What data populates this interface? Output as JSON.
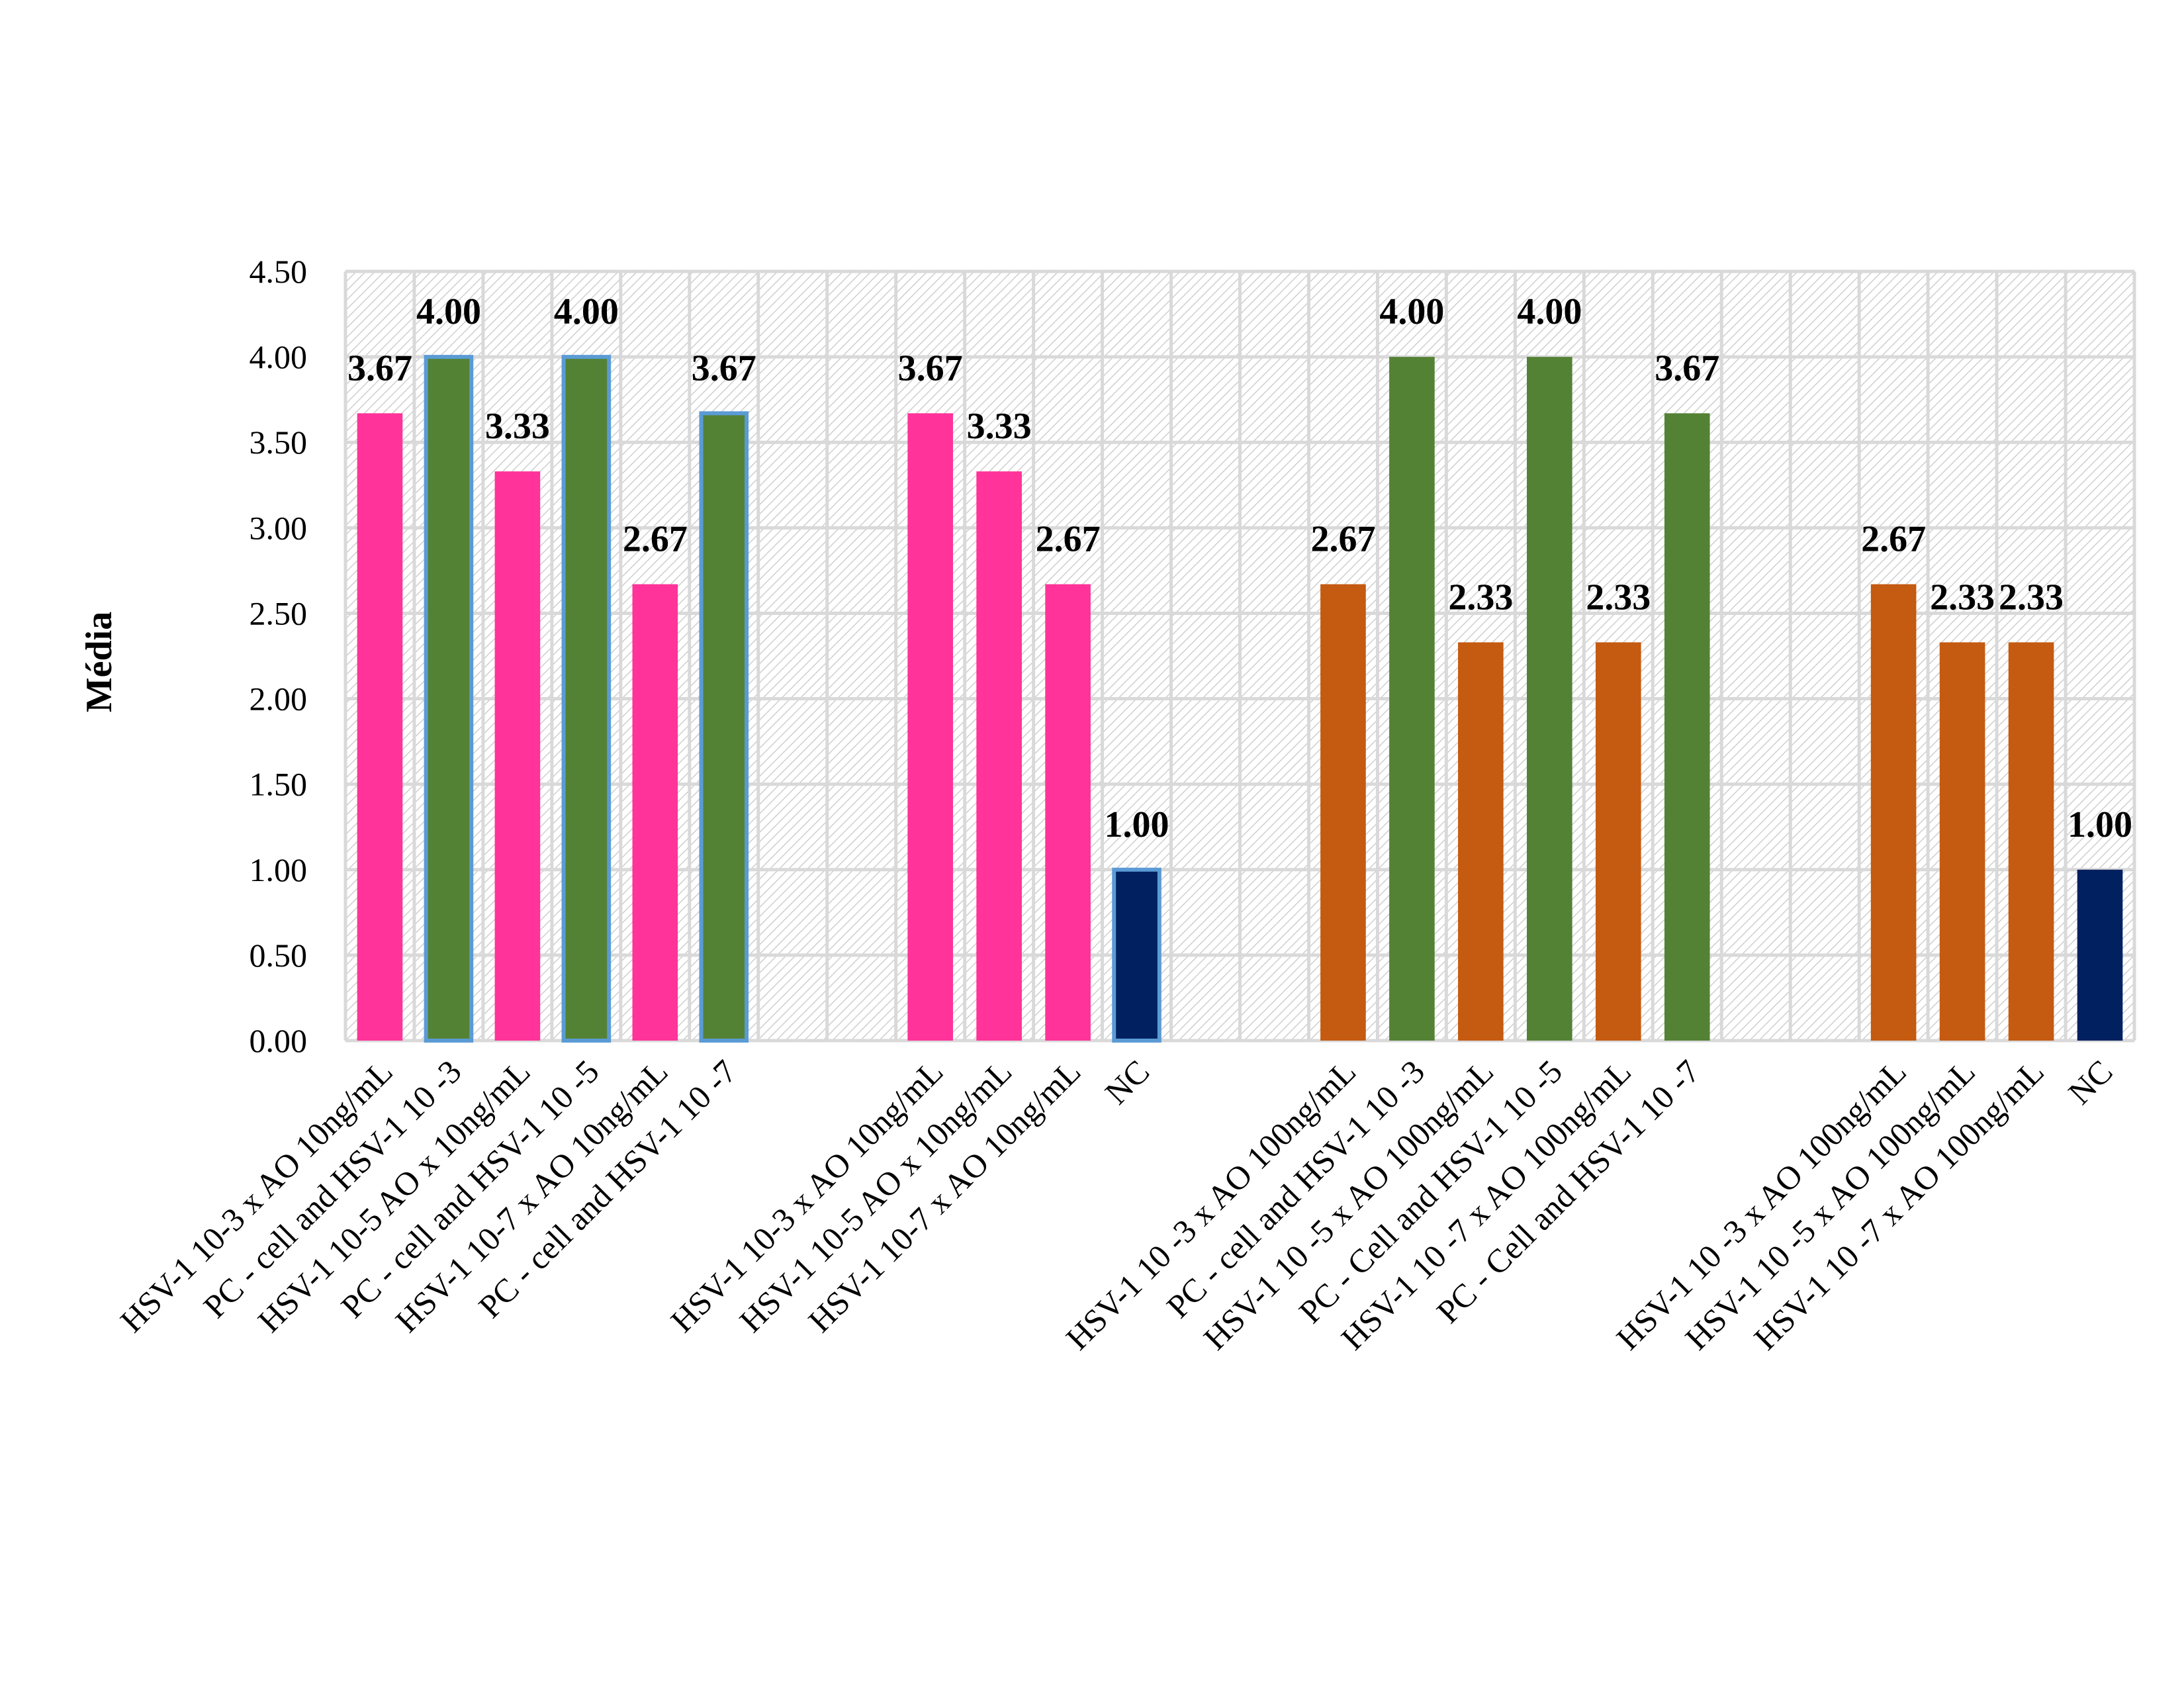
{
  "chart_data": {
    "type": "bar",
    "ylabel": "Média",
    "ylim": [
      0,
      4.5
    ],
    "ytick_step": 0.5,
    "yticks": [
      "0.00",
      "0.50",
      "1.00",
      "1.50",
      "2.00",
      "2.50",
      "3.00",
      "3.50",
      "4.00",
      "4.50"
    ],
    "grid": true,
    "colors": {
      "pink": "#ff3399",
      "green": "#548235",
      "orange": "#c55a11",
      "navy": "#002060",
      "outline": "#5b9bd5",
      "grid": "#d9d9d9"
    },
    "bars": [
      {
        "label": "HSV-1 10-3 x AO 10ng/mL",
        "value": 3.67,
        "value_label": "3.67",
        "color": "pink",
        "outline": false
      },
      {
        "label": "PC - cell and HSV-1 10 -3",
        "value": 4.0,
        "value_label": "4.00",
        "color": "green",
        "outline": true
      },
      {
        "label": "HSV-1 10-5 AO x 10ng/mL",
        "value": 3.33,
        "value_label": "3.33",
        "color": "pink",
        "outline": false
      },
      {
        "label": "PC - cell and HSV-1 10 -5",
        "value": 4.0,
        "value_label": "4.00",
        "color": "green",
        "outline": true
      },
      {
        "label": "HSV-1 10-7 x AO 10ng/mL",
        "value": 2.67,
        "value_label": "2.67",
        "color": "pink",
        "outline": false
      },
      {
        "label": "PC - cell and HSV-1 10 -7",
        "value": 3.67,
        "value_label": "3.67",
        "color": "green",
        "outline": true
      },
      {
        "label": "",
        "value": null,
        "value_label": "",
        "color": "",
        "outline": false
      },
      {
        "label": "",
        "value": null,
        "value_label": "",
        "color": "",
        "outline": false
      },
      {
        "label": "HSV-1 10-3 x AO 10ng/mL",
        "value": 3.67,
        "value_label": "3.67",
        "color": "pink",
        "outline": false
      },
      {
        "label": "HSV-1 10-5 AO x 10ng/mL",
        "value": 3.33,
        "value_label": "3.33",
        "color": "pink",
        "outline": false
      },
      {
        "label": "HSV-1 10-7 x AO 10ng/mL",
        "value": 2.67,
        "value_label": "2.67",
        "color": "pink",
        "outline": false
      },
      {
        "label": "NC",
        "value": 1.0,
        "value_label": "1.00",
        "color": "navy",
        "outline": true
      },
      {
        "label": "",
        "value": null,
        "value_label": "",
        "color": "",
        "outline": false
      },
      {
        "label": "",
        "value": null,
        "value_label": "",
        "color": "",
        "outline": false
      },
      {
        "label": "HSV-1 10 -3 x AO 100ng/mL",
        "value": 2.67,
        "value_label": "2.67",
        "color": "orange",
        "outline": false
      },
      {
        "label": "PC - cell and HSV-1 10 -3",
        "value": 4.0,
        "value_label": "4.00",
        "color": "green",
        "outline": false
      },
      {
        "label": "HSV-1 10 -5 x AO 100ng/mL",
        "value": 2.33,
        "value_label": "2.33",
        "color": "orange",
        "outline": false
      },
      {
        "label": "PC - Cell and HSV-1 10 -5",
        "value": 4.0,
        "value_label": "4.00",
        "color": "green",
        "outline": false
      },
      {
        "label": "HSV-1 10 -7 x AO 100ng/mL",
        "value": 2.33,
        "value_label": "2.33",
        "color": "orange",
        "outline": false
      },
      {
        "label": "PC - Cell and HSV-1 10 -7",
        "value": 3.67,
        "value_label": "3.67",
        "color": "green",
        "outline": false
      },
      {
        "label": "",
        "value": null,
        "value_label": "",
        "color": "",
        "outline": false
      },
      {
        "label": "",
        "value": null,
        "value_label": "",
        "color": "",
        "outline": false
      },
      {
        "label": "HSV-1 10 -3 x AO 100ng/mL",
        "value": 2.67,
        "value_label": "2.67",
        "color": "orange",
        "outline": false
      },
      {
        "label": "HSV-1 10 -5 x AO 100ng/mL",
        "value": 2.33,
        "value_label": "2.33",
        "color": "orange",
        "outline": false
      },
      {
        "label": "HSV-1 10 -7 x AO 100ng/mL",
        "value": 2.33,
        "value_label": "2.33",
        "color": "orange",
        "outline": false
      },
      {
        "label": "NC",
        "value": 1.0,
        "value_label": "1.00",
        "color": "navy",
        "outline": false
      }
    ]
  }
}
